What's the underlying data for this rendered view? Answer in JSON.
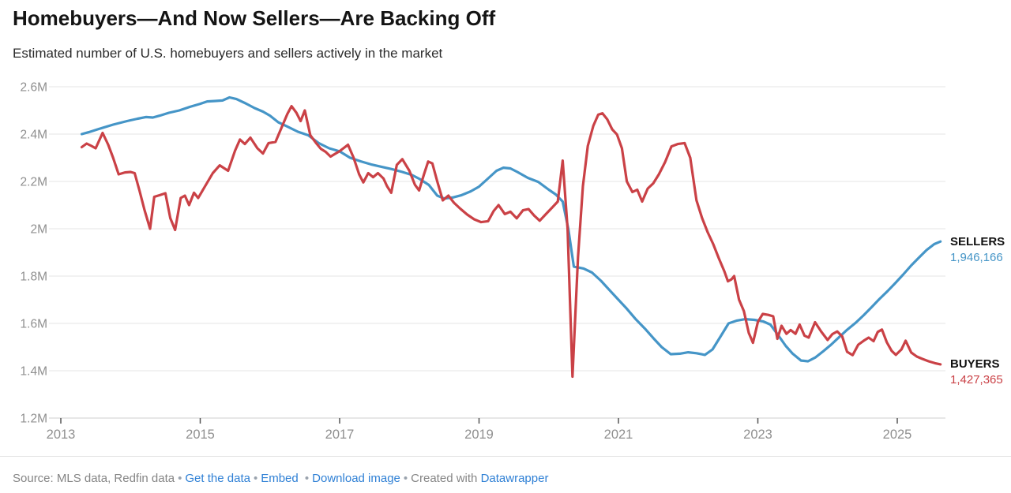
{
  "header": {
    "title": "Homebuyers—And Now Sellers—Are Backing Off",
    "subtitle": "Estimated number of U.S. homebuyers and sellers actively in the market"
  },
  "colors": {
    "sellers_line": "#4595c7",
    "buyers_line": "#ca4146",
    "grid": "#e6e6e6",
    "axis_line": "#cfcfcf",
    "tick_mark": "#555555",
    "axis_text": "#8f8f8f",
    "link_blue": "#2f80d5"
  },
  "chart_data": {
    "type": "line",
    "title": "Homebuyers—And Now Sellers—Are Backing Off",
    "subtitle": "Estimated number of U.S. homebuyers and sellers actively in the market",
    "grid": "horizontal",
    "legend_position": "end-of-line-labels",
    "x_axis": {
      "tick_values": [
        2013,
        2015,
        2017,
        2019,
        2021,
        2023,
        2025
      ],
      "tick_labels": [
        "2013",
        "2015",
        "2017",
        "2019",
        "2021",
        "2023",
        "2025"
      ],
      "range": [
        2013.3,
        2025.62
      ]
    },
    "y_axis": {
      "unit": "millions",
      "tick_values": [
        2.6,
        2.4,
        2.2,
        2.0,
        1.8,
        1.6,
        1.4,
        1.2
      ],
      "tick_labels": [
        "2.6M",
        "2.4M",
        "2.2M",
        "2M",
        "1.8M",
        "1.6M",
        "1.4M",
        "1.2M"
      ],
      "range": [
        1.2,
        2.6
      ]
    },
    "series": [
      {
        "name": "SELLERS",
        "color": "#4595c7",
        "final_value": 1946166,
        "final_value_label": "1,946,166",
        "points": [
          [
            2013.3,
            2.4
          ],
          [
            2013.4,
            2.408
          ],
          [
            2013.55,
            2.422
          ],
          [
            2013.75,
            2.44
          ],
          [
            2013.95,
            2.455
          ],
          [
            2014.1,
            2.465
          ],
          [
            2014.22,
            2.472
          ],
          [
            2014.32,
            2.47
          ],
          [
            2014.42,
            2.478
          ],
          [
            2014.55,
            2.49
          ],
          [
            2014.7,
            2.5
          ],
          [
            2014.85,
            2.515
          ],
          [
            2015.0,
            2.528
          ],
          [
            2015.1,
            2.538
          ],
          [
            2015.22,
            2.54
          ],
          [
            2015.32,
            2.542
          ],
          [
            2015.42,
            2.555
          ],
          [
            2015.52,
            2.548
          ],
          [
            2015.65,
            2.53
          ],
          [
            2015.78,
            2.51
          ],
          [
            2015.9,
            2.495
          ],
          [
            2016.0,
            2.478
          ],
          [
            2016.12,
            2.45
          ],
          [
            2016.25,
            2.432
          ],
          [
            2016.4,
            2.41
          ],
          [
            2016.55,
            2.395
          ],
          [
            2016.7,
            2.362
          ],
          [
            2016.85,
            2.34
          ],
          [
            2017.0,
            2.327
          ],
          [
            2017.15,
            2.3
          ],
          [
            2017.3,
            2.285
          ],
          [
            2017.45,
            2.272
          ],
          [
            2017.6,
            2.262
          ],
          [
            2017.75,
            2.252
          ],
          [
            2017.9,
            2.24
          ],
          [
            2018.03,
            2.228
          ],
          [
            2018.15,
            2.21
          ],
          [
            2018.28,
            2.185
          ],
          [
            2018.4,
            2.14
          ],
          [
            2018.5,
            2.128
          ],
          [
            2018.62,
            2.132
          ],
          [
            2018.75,
            2.142
          ],
          [
            2018.88,
            2.158
          ],
          [
            2019.0,
            2.178
          ],
          [
            2019.12,
            2.21
          ],
          [
            2019.25,
            2.245
          ],
          [
            2019.35,
            2.258
          ],
          [
            2019.45,
            2.255
          ],
          [
            2019.55,
            2.24
          ],
          [
            2019.7,
            2.215
          ],
          [
            2019.85,
            2.198
          ],
          [
            2020.0,
            2.165
          ],
          [
            2020.1,
            2.145
          ],
          [
            2020.2,
            2.115
          ],
          [
            2020.28,
            2.0
          ],
          [
            2020.36,
            1.84
          ],
          [
            2020.5,
            1.832
          ],
          [
            2020.62,
            1.815
          ],
          [
            2020.75,
            1.78
          ],
          [
            2020.88,
            1.738
          ],
          [
            2021.0,
            1.7
          ],
          [
            2021.12,
            1.662
          ],
          [
            2021.25,
            1.617
          ],
          [
            2021.38,
            1.578
          ],
          [
            2021.5,
            1.538
          ],
          [
            2021.62,
            1.5
          ],
          [
            2021.75,
            1.47
          ],
          [
            2021.88,
            1.472
          ],
          [
            2022.0,
            1.478
          ],
          [
            2022.12,
            1.474
          ],
          [
            2022.24,
            1.467
          ],
          [
            2022.35,
            1.49
          ],
          [
            2022.47,
            1.547
          ],
          [
            2022.58,
            1.6
          ],
          [
            2022.7,
            1.612
          ],
          [
            2022.82,
            1.618
          ],
          [
            2022.95,
            1.615
          ],
          [
            2023.08,
            1.608
          ],
          [
            2023.18,
            1.595
          ],
          [
            2023.28,
            1.555
          ],
          [
            2023.4,
            1.505
          ],
          [
            2023.5,
            1.472
          ],
          [
            2023.62,
            1.443
          ],
          [
            2023.72,
            1.44
          ],
          [
            2023.83,
            1.457
          ],
          [
            2023.94,
            1.483
          ],
          [
            2024.05,
            1.51
          ],
          [
            2024.17,
            1.543
          ],
          [
            2024.28,
            1.573
          ],
          [
            2024.4,
            1.602
          ],
          [
            2024.52,
            1.635
          ],
          [
            2024.63,
            1.668
          ],
          [
            2024.74,
            1.702
          ],
          [
            2024.86,
            1.736
          ],
          [
            2024.97,
            1.77
          ],
          [
            2025.08,
            1.805
          ],
          [
            2025.2,
            1.845
          ],
          [
            2025.31,
            1.878
          ],
          [
            2025.42,
            1.91
          ],
          [
            2025.53,
            1.935
          ],
          [
            2025.62,
            1.946
          ]
        ]
      },
      {
        "name": "BUYERS",
        "color": "#ca4146",
        "final_value": 1427365,
        "final_value_label": "1,427,365",
        "points": [
          [
            2013.3,
            2.345
          ],
          [
            2013.37,
            2.36
          ],
          [
            2013.44,
            2.35
          ],
          [
            2013.5,
            2.34
          ],
          [
            2013.6,
            2.405
          ],
          [
            2013.68,
            2.355
          ],
          [
            2013.75,
            2.3
          ],
          [
            2013.83,
            2.23
          ],
          [
            2013.92,
            2.238
          ],
          [
            2014.0,
            2.24
          ],
          [
            2014.06,
            2.235
          ],
          [
            2014.13,
            2.16
          ],
          [
            2014.2,
            2.08
          ],
          [
            2014.28,
            2.0
          ],
          [
            2014.34,
            2.135
          ],
          [
            2014.42,
            2.142
          ],
          [
            2014.5,
            2.15
          ],
          [
            2014.57,
            2.045
          ],
          [
            2014.64,
            1.995
          ],
          [
            2014.72,
            2.13
          ],
          [
            2014.78,
            2.14
          ],
          [
            2014.84,
            2.1
          ],
          [
            2014.91,
            2.152
          ],
          [
            2014.97,
            2.13
          ],
          [
            2015.06,
            2.175
          ],
          [
            2015.18,
            2.235
          ],
          [
            2015.28,
            2.268
          ],
          [
            2015.4,
            2.245
          ],
          [
            2015.5,
            2.33
          ],
          [
            2015.57,
            2.377
          ],
          [
            2015.64,
            2.358
          ],
          [
            2015.72,
            2.385
          ],
          [
            2015.82,
            2.34
          ],
          [
            2015.9,
            2.318
          ],
          [
            2015.98,
            2.362
          ],
          [
            2016.08,
            2.367
          ],
          [
            2016.17,
            2.43
          ],
          [
            2016.25,
            2.485
          ],
          [
            2016.31,
            2.518
          ],
          [
            2016.38,
            2.49
          ],
          [
            2016.44,
            2.455
          ],
          [
            2016.5,
            2.5
          ],
          [
            2016.58,
            2.395
          ],
          [
            2016.66,
            2.363
          ],
          [
            2016.73,
            2.338
          ],
          [
            2016.8,
            2.325
          ],
          [
            2016.87,
            2.305
          ],
          [
            2017.0,
            2.328
          ],
          [
            2017.12,
            2.355
          ],
          [
            2017.2,
            2.3
          ],
          [
            2017.28,
            2.23
          ],
          [
            2017.34,
            2.196
          ],
          [
            2017.41,
            2.235
          ],
          [
            2017.48,
            2.218
          ],
          [
            2017.55,
            2.235
          ],
          [
            2017.63,
            2.212
          ],
          [
            2017.68,
            2.18
          ],
          [
            2017.74,
            2.152
          ],
          [
            2017.82,
            2.27
          ],
          [
            2017.9,
            2.294
          ],
          [
            2018.0,
            2.245
          ],
          [
            2018.08,
            2.186
          ],
          [
            2018.14,
            2.162
          ],
          [
            2018.21,
            2.23
          ],
          [
            2018.27,
            2.284
          ],
          [
            2018.33,
            2.276
          ],
          [
            2018.4,
            2.2
          ],
          [
            2018.48,
            2.12
          ],
          [
            2018.56,
            2.14
          ],
          [
            2018.64,
            2.11
          ],
          [
            2018.73,
            2.085
          ],
          [
            2018.83,
            2.06
          ],
          [
            2018.93,
            2.04
          ],
          [
            2019.03,
            2.028
          ],
          [
            2019.13,
            2.032
          ],
          [
            2019.21,
            2.075
          ],
          [
            2019.28,
            2.1
          ],
          [
            2019.37,
            2.062
          ],
          [
            2019.45,
            2.072
          ],
          [
            2019.54,
            2.044
          ],
          [
            2019.63,
            2.078
          ],
          [
            2019.71,
            2.083
          ],
          [
            2019.79,
            2.056
          ],
          [
            2019.87,
            2.034
          ],
          [
            2019.96,
            2.062
          ],
          [
            2020.05,
            2.09
          ],
          [
            2020.13,
            2.115
          ],
          [
            2020.2,
            2.288
          ],
          [
            2020.27,
            2.0
          ],
          [
            2020.34,
            1.375
          ],
          [
            2020.42,
            1.88
          ],
          [
            2020.49,
            2.18
          ],
          [
            2020.56,
            2.35
          ],
          [
            2020.64,
            2.435
          ],
          [
            2020.71,
            2.482
          ],
          [
            2020.77,
            2.488
          ],
          [
            2020.84,
            2.462
          ],
          [
            2020.91,
            2.42
          ],
          [
            2020.98,
            2.398
          ],
          [
            2021.05,
            2.34
          ],
          [
            2021.12,
            2.2
          ],
          [
            2021.2,
            2.155
          ],
          [
            2021.27,
            2.165
          ],
          [
            2021.34,
            2.115
          ],
          [
            2021.42,
            2.17
          ],
          [
            2021.5,
            2.192
          ],
          [
            2021.58,
            2.23
          ],
          [
            2021.67,
            2.282
          ],
          [
            2021.76,
            2.348
          ],
          [
            2021.85,
            2.358
          ],
          [
            2021.95,
            2.362
          ],
          [
            2022.03,
            2.3
          ],
          [
            2022.12,
            2.12
          ],
          [
            2022.2,
            2.045
          ],
          [
            2022.28,
            1.985
          ],
          [
            2022.36,
            1.935
          ],
          [
            2022.44,
            1.875
          ],
          [
            2022.52,
            1.82
          ],
          [
            2022.57,
            1.778
          ],
          [
            2022.62,
            1.786
          ],
          [
            2022.66,
            1.8
          ],
          [
            2022.73,
            1.7
          ],
          [
            2022.8,
            1.652
          ],
          [
            2022.87,
            1.56
          ],
          [
            2022.93,
            1.518
          ],
          [
            2023.0,
            1.606
          ],
          [
            2023.07,
            1.64
          ],
          [
            2023.15,
            1.636
          ],
          [
            2023.22,
            1.63
          ],
          [
            2023.28,
            1.535
          ],
          [
            2023.34,
            1.59
          ],
          [
            2023.41,
            1.556
          ],
          [
            2023.47,
            1.572
          ],
          [
            2023.54,
            1.556
          ],
          [
            2023.6,
            1.595
          ],
          [
            2023.67,
            1.548
          ],
          [
            2023.73,
            1.54
          ],
          [
            2023.82,
            1.605
          ],
          [
            2023.91,
            1.565
          ],
          [
            2024.0,
            1.53
          ],
          [
            2024.07,
            1.555
          ],
          [
            2024.14,
            1.566
          ],
          [
            2024.21,
            1.545
          ],
          [
            2024.28,
            1.48
          ],
          [
            2024.36,
            1.466
          ],
          [
            2024.44,
            1.51
          ],
          [
            2024.52,
            1.527
          ],
          [
            2024.59,
            1.54
          ],
          [
            2024.66,
            1.525
          ],
          [
            2024.72,
            1.564
          ],
          [
            2024.78,
            1.574
          ],
          [
            2024.85,
            1.52
          ],
          [
            2024.92,
            1.484
          ],
          [
            2024.98,
            1.467
          ],
          [
            2025.06,
            1.49
          ],
          [
            2025.12,
            1.527
          ],
          [
            2025.2,
            1.477
          ],
          [
            2025.28,
            1.46
          ],
          [
            2025.36,
            1.45
          ],
          [
            2025.45,
            1.44
          ],
          [
            2025.54,
            1.432
          ],
          [
            2025.62,
            1.427
          ]
        ]
      }
    ]
  },
  "annotations": {
    "sellers": {
      "label": "SELLERS",
      "value": "1,946,166"
    },
    "buyers": {
      "label": "BUYERS",
      "value": "1,427,365"
    }
  },
  "footer": {
    "source_text": "Source: MLS data, Redfin data",
    "separator": "•",
    "links": {
      "get_data": "Get the data",
      "embed": "Embed",
      "download": "Download image"
    },
    "created_with": "Created with",
    "creator": "Datawrapper"
  }
}
